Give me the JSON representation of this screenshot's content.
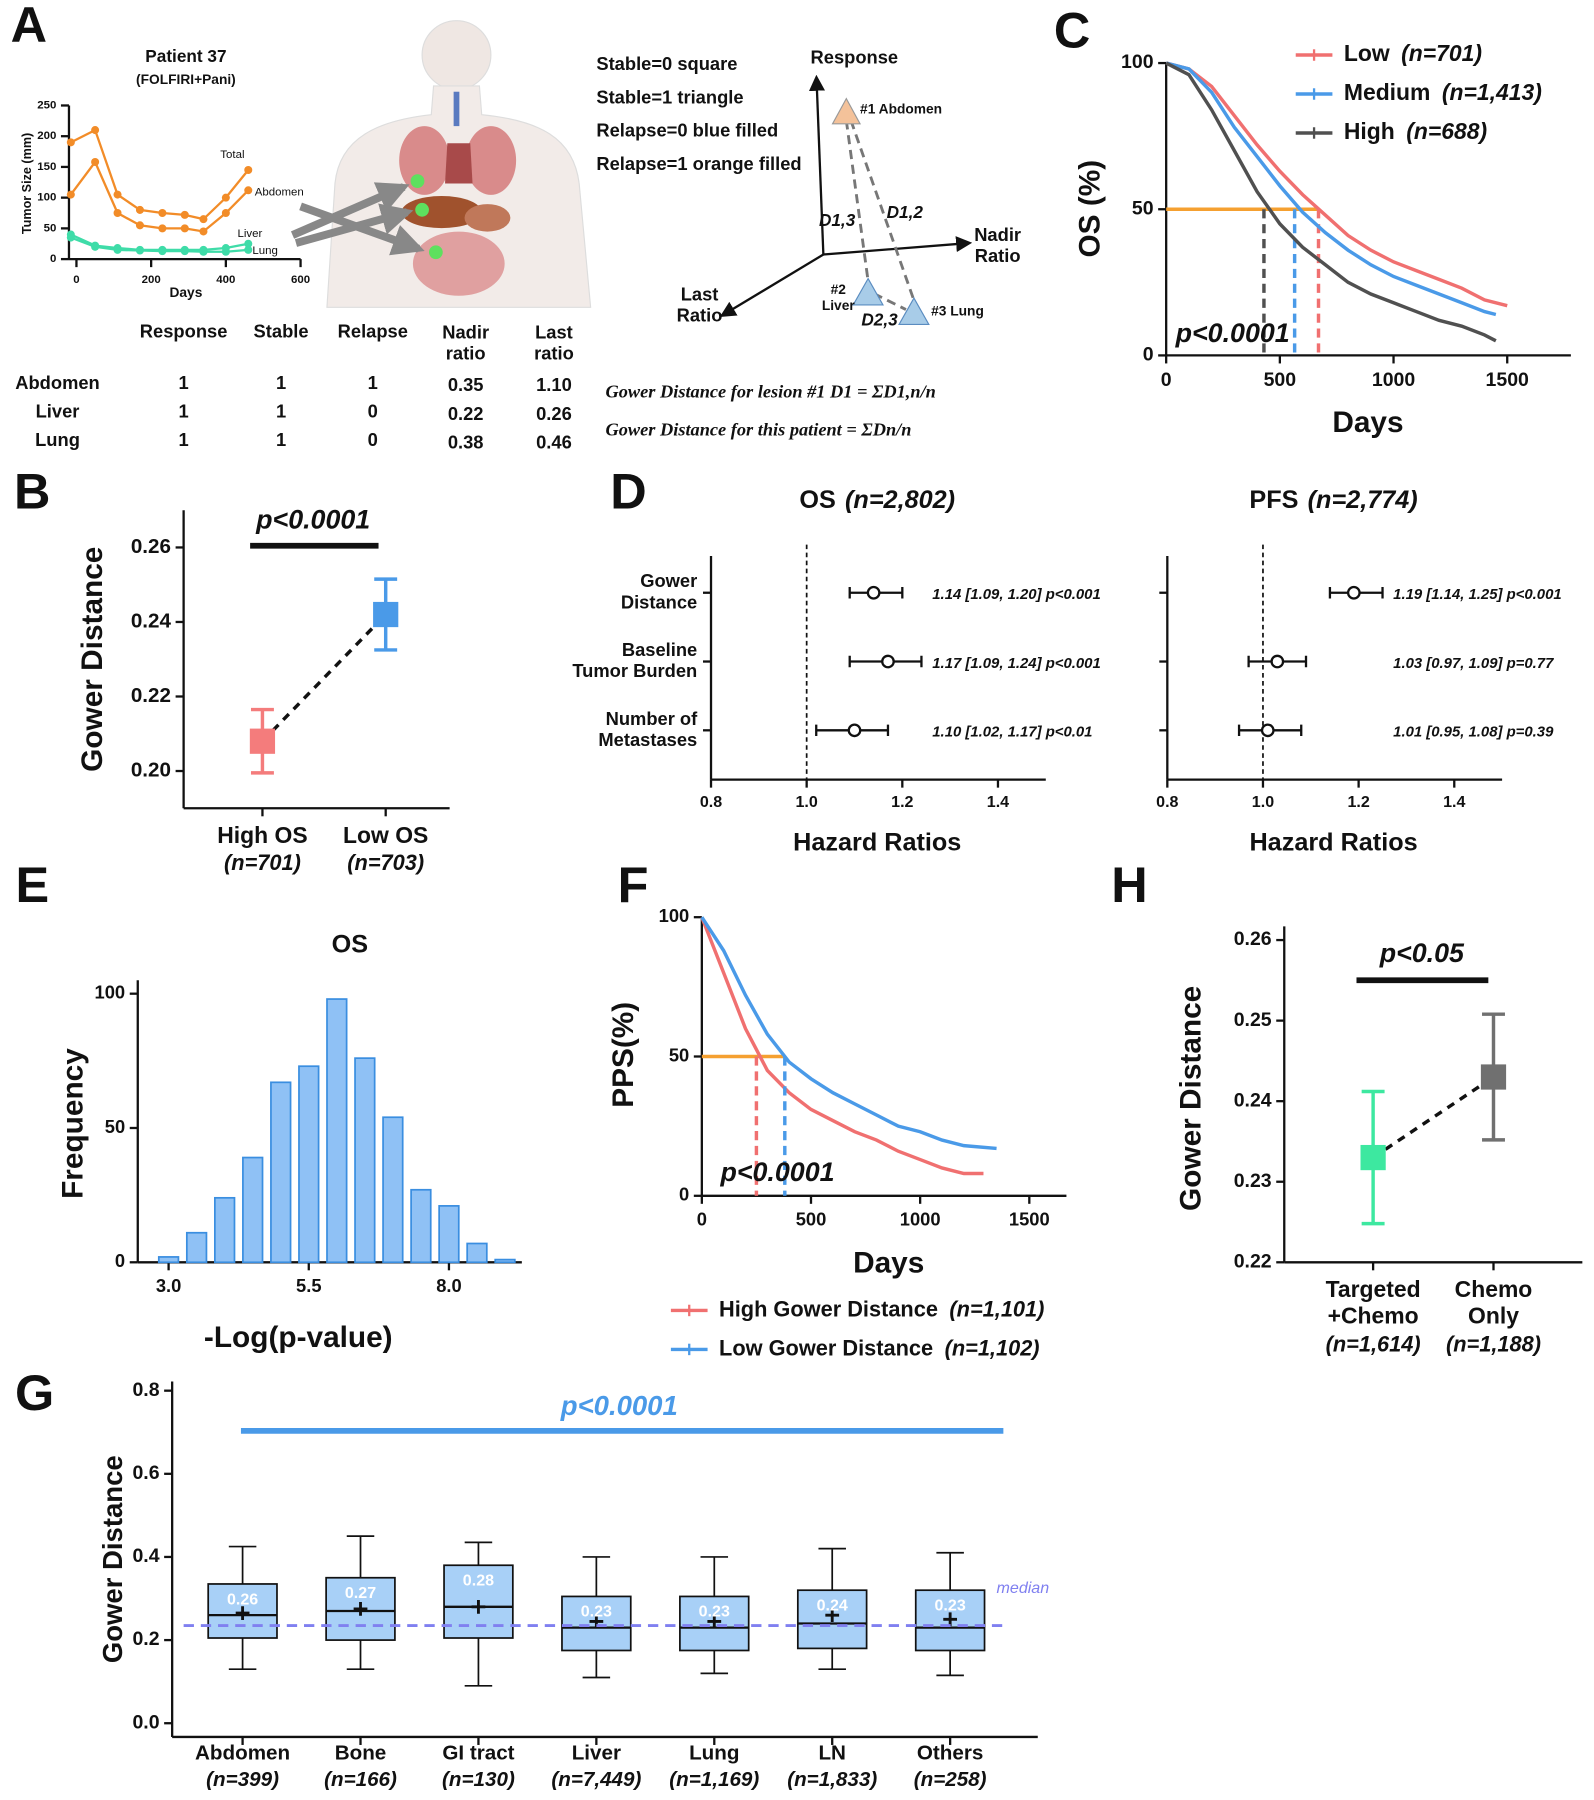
{
  "panel_a": {
    "panel": "A",
    "table": {
      "header": [
        "Response",
        "Stable",
        "Relapse",
        "Nadir\nratio",
        "Last\nratio"
      ],
      "rows": [
        [
          "Abdomen",
          "1",
          "1",
          "1",
          "0.35",
          "1.10"
        ],
        [
          "Liver",
          "1",
          "1",
          "0",
          "0.22",
          "0.26"
        ],
        [
          "Lung",
          "1",
          "1",
          "0",
          "0.38",
          "0.46"
        ]
      ]
    },
    "key": [
      "Stable=0 square",
      "Stable=1 triangle",
      "Relapse=0 blue filled",
      "Relapse=1 orange filled"
    ],
    "axes": {
      "response": "Response",
      "nadir": "Nadir\nRatio",
      "last": "Last\nRatio"
    },
    "lesions": [
      "#1 Abdomen",
      "#2\nLiver",
      "#3 Lung"
    ],
    "distances": [
      "D1,3",
      "D1,2",
      "D2,3"
    ],
    "formulas": [
      "Gower Distance for lesion #1  D1 = ΣD1,n/n",
      "Gower Distance for this patient = ΣDn/n"
    ]
  },
  "chart_data": [
    {
      "type": "line",
      "title": "Patient 37",
      "subtitle": "(FOLFIRI+Pani)",
      "x_label": "Days",
      "y_label": "Tumor Size (mm)",
      "x": [
        -15,
        50,
        110,
        170,
        230,
        290,
        340,
        400,
        460
      ],
      "series": [
        {
          "name": "Total",
          "color": "#f28c28",
          "values": [
            190,
            210,
            105,
            80,
            75,
            72,
            65,
            100,
            145
          ]
        },
        {
          "name": "Abdomen",
          "color": "#f28c28",
          "values": [
            105,
            158,
            75,
            55,
            50,
            50,
            45,
            75,
            112
          ]
        },
        {
          "name": "Liver",
          "color": "#3fdca8",
          "values": [
            40,
            22,
            18,
            15,
            15,
            15,
            15,
            18,
            25
          ]
        },
        {
          "name": "Lung",
          "color": "#3fdca8",
          "values": [
            35,
            20,
            15,
            14,
            13,
            13,
            12,
            12,
            15
          ]
        }
      ],
      "xlim": [
        -20,
        600
      ],
      "xticks": [
        0,
        200,
        400,
        600
      ],
      "ylim": [
        0,
        250
      ],
      "yticks": [
        0,
        50,
        100,
        150,
        200,
        250
      ]
    },
    {
      "type": "errorbar",
      "panel": "B",
      "y_label": "Gower Distance",
      "categories": [
        "High OS",
        "Low OS"
      ],
      "category_notes": [
        "(n=701)",
        "(n=703)"
      ],
      "values": [
        0.208,
        0.242
      ],
      "errors": [
        0.0085,
        0.0095
      ],
      "colors": [
        "#f47c7c",
        "#4a9ae8"
      ],
      "annotation": "p<0.0001",
      "ylim": [
        0.19,
        0.27
      ],
      "yticks": [
        {
          "value": 0.2,
          "label": "0.20"
        },
        0.22,
        0.24,
        0.26
      ]
    },
    {
      "type": "km",
      "panel": "C",
      "x_label": "Days",
      "y_label": "OS (%)",
      "annotation": "p<0.0001",
      "series": [
        {
          "name": "Low",
          "note": "(n=701)",
          "color": "#f07070",
          "median": 670,
          "x": [
            0,
            100,
            200,
            300,
            400,
            500,
            600,
            700,
            800,
            900,
            1000,
            1100,
            1200,
            1300,
            1400,
            1500
          ],
          "values": [
            100,
            98,
            92,
            82,
            72,
            63,
            55,
            48,
            41,
            36,
            32,
            29,
            26,
            23,
            19,
            17
          ]
        },
        {
          "name": "Medium",
          "note": "(n=1,413)",
          "color": "#4a9ae8",
          "median": 565,
          "x": [
            0,
            100,
            200,
            300,
            400,
            500,
            600,
            700,
            800,
            900,
            1000,
            1100,
            1200,
            1300,
            1400,
            1450
          ],
          "values": [
            100,
            98,
            90,
            78,
            68,
            58,
            49,
            42,
            36,
            31,
            27,
            24,
            21,
            18,
            15,
            14
          ]
        },
        {
          "name": "High",
          "note": "(n=688)",
          "color": "#505050",
          "median": 430,
          "x": [
            0,
            100,
            200,
            300,
            400,
            500,
            600,
            700,
            800,
            900,
            1000,
            1100,
            1200,
            1300,
            1400,
            1450
          ],
          "values": [
            100,
            96,
            84,
            70,
            56,
            45,
            37,
            31,
            25,
            21,
            18,
            15,
            12,
            10,
            7,
            5
          ]
        }
      ],
      "median_line_color": "#f5a030",
      "xlim": [
        0,
        1780
      ],
      "xticks": [
        0,
        500,
        1000,
        1500
      ],
      "ylim": [
        0,
        100
      ],
      "yticks": [
        0,
        50,
        100
      ]
    },
    {
      "type": "forest",
      "panel": "D",
      "title": "OS",
      "title_note": "(n=2,802)",
      "x_label": "Hazard Ratios",
      "categories": [
        "Gower\nDistance",
        "Baseline\nTumor Burden",
        "Number of\nMetastases"
      ],
      "values": [
        1.14,
        1.17,
        1.1
      ],
      "lower": [
        1.09,
        1.09,
        1.02
      ],
      "upper": [
        1.2,
        1.24,
        1.17
      ],
      "value_labels": [
        "1.14 [1.09, 1.20] p<0.001",
        "1.17 [1.09, 1.24] p<0.001",
        "1.10 [1.02, 1.17] p<0.01"
      ],
      "reference_line": 1,
      "xlim": [
        0.8,
        1.5
      ],
      "xticks": [
        0.8,
        {
          "value": 1,
          "label": "1.0"
        },
        1.2,
        1.4
      ]
    },
    {
      "type": "forest",
      "title": "PFS",
      "title_note": "(n=2,774)",
      "x_label": "Hazard Ratios",
      "values": [
        1.19,
        1.03,
        1.01
      ],
      "lower": [
        1.14,
        0.97,
        0.95
      ],
      "upper": [
        1.25,
        1.09,
        1.08
      ],
      "value_labels": [
        "1.19 [1.14, 1.25] p<0.001",
        "1.03 [0.97, 1.09] p=0.77",
        "1.01 [0.95, 1.08] p=0.39"
      ],
      "reference_line": 1,
      "xlim": [
        0.8,
        1.5
      ],
      "xticks": [
        0.8,
        {
          "value": 1,
          "label": "1.0"
        },
        1.2,
        1.4
      ]
    },
    {
      "type": "histogram",
      "panel": "E",
      "title": "OS",
      "x_label": "-Log(p-value)",
      "y_label": "Frequency",
      "bins": [
        2.75,
        3.25,
        3.75,
        4.25,
        4.75,
        5.25,
        5.75,
        6.25,
        6.75,
        7.25,
        7.75,
        8.25,
        8.75,
        9.25
      ],
      "values": [
        2,
        11,
        24,
        39,
        67,
        73,
        98,
        76,
        54,
        27,
        21,
        7,
        1
      ],
      "color": "#8fc1f5",
      "edge_color": "#3a8ee0",
      "xlim": [
        2.45,
        9.3
      ],
      "xticks": [
        {
          "value": 3,
          "label": "3.0"
        },
        5.5,
        {
          "value": 8,
          "label": "8.0"
        }
      ],
      "ylim": [
        0,
        105
      ],
      "yticks": [
        0,
        50,
        100
      ]
    },
    {
      "type": "km",
      "panel": "F",
      "x_label": "Days",
      "y_label": "PPS(%)",
      "annotation": "p<0.0001",
      "series": [
        {
          "name": "High Gower Distance",
          "note": "(n=1,101)",
          "color": "#f07070",
          "median": 250,
          "x": [
            0,
            100,
            200,
            300,
            400,
            500,
            600,
            700,
            800,
            900,
            1000,
            1100,
            1200,
            1290
          ],
          "values": [
            100,
            80,
            60,
            45,
            37,
            31,
            27,
            23,
            20,
            16,
            13,
            10,
            8,
            8
          ]
        },
        {
          "name": "Low Gower Distance",
          "note": "(n=1,102)",
          "color": "#4a9ae8",
          "median": 380,
          "x": [
            0,
            100,
            200,
            300,
            400,
            500,
            600,
            700,
            800,
            900,
            1000,
            1100,
            1200,
            1350
          ],
          "values": [
            100,
            88,
            72,
            58,
            48,
            42,
            37,
            33,
            29,
            25,
            23,
            20,
            18,
            17
          ]
        }
      ],
      "median_line_color": "#f5a030",
      "xlim": [
        0,
        1670
      ],
      "xticks": [
        0,
        500,
        1000,
        1500
      ],
      "ylim": [
        0,
        100
      ],
      "yticks": [
        0,
        50,
        100
      ]
    },
    {
      "type": "box",
      "panel": "G",
      "y_label": "Gower Distance",
      "annotation": "p<0.0001",
      "categories": [
        "Abdomen",
        "Bone",
        "GI tract",
        "Liver",
        "Lung",
        "LN",
        "Others"
      ],
      "category_notes": [
        "(n=399)",
        "(n=166)",
        "(n=130)",
        "(n=7,449)",
        "(n=1,169)",
        "(n=1,833)",
        "(n=258)"
      ],
      "whisker_low": [
        0.13,
        0.13,
        0.09,
        0.11,
        0.12,
        0.13,
        0.115
      ],
      "q1": [
        0.205,
        0.2,
        0.205,
        0.175,
        0.175,
        0.18,
        0.175
      ],
      "median": [
        0.26,
        0.27,
        0.28,
        0.23,
        0.23,
        0.24,
        0.23
      ],
      "q3": [
        0.335,
        0.35,
        0.38,
        0.305,
        0.305,
        0.32,
        0.32
      ],
      "whisker_high": [
        0.425,
        0.45,
        0.435,
        0.4,
        0.4,
        0.42,
        0.41
      ],
      "mean": [
        0.265,
        0.275,
        0.28,
        0.245,
        0.245,
        0.26,
        0.25
      ],
      "color": "#a8d0f7",
      "significance_color": "#4a9ae8",
      "reference_line": 0.235,
      "reference_label": "median",
      "reference_color": "#8080f0",
      "ylim": [
        -0.033,
        0.822
      ],
      "yticks": [
        {
          "value": 0,
          "label": "0.0"
        },
        0.2,
        0.4,
        0.6,
        0.8
      ]
    },
    {
      "type": "errorbar",
      "panel": "H",
      "y_label": "Gower Distance",
      "categories": [
        "Targeted\n+Chemo",
        "Chemo\nOnly"
      ],
      "category_notes": [
        "(n=1,614)",
        "(n=1,188)"
      ],
      "values": [
        0.233,
        0.243
      ],
      "errors": [
        0.0082,
        0.0078
      ],
      "colors": [
        "#3de8a0",
        "#707070"
      ],
      "annotation": "p<0.05",
      "ylim": [
        0.22,
        0.2617
      ],
      "yticks": [
        0.22,
        0.23,
        0.24,
        0.25,
        0.26
      ]
    }
  ]
}
